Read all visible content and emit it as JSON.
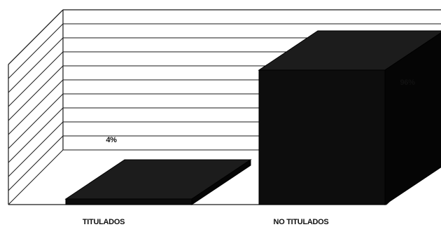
{
  "chart_data": {
    "type": "bar",
    "categories": [
      "TITULADOS",
      "NO TITULADOS"
    ],
    "values": [
      4,
      96
    ],
    "data_labels": [
      "4%",
      "96%"
    ],
    "ylim": [
      0,
      100
    ],
    "grid": true,
    "three_d": true,
    "bar_color": "#0d0d0d"
  }
}
